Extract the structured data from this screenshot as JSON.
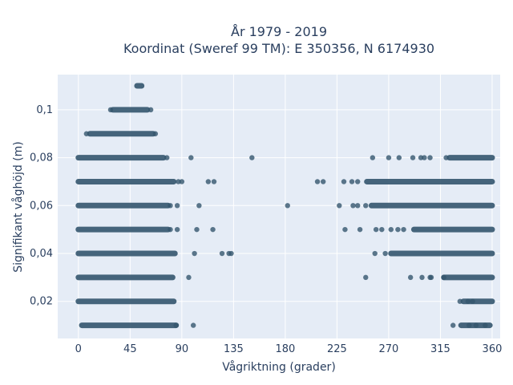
{
  "chart_data": {
    "type": "scatter",
    "title": "År 1979 - 2019",
    "subtitle": "Koordinat (Sweref 99 TM): E 350356, N 6174930",
    "xlabel": "Vågriktning (grader)",
    "ylabel": "Signifikant våghöjd (m)",
    "xlim": [
      -18,
      367
    ],
    "ylim": [
      0.0045,
      0.1147
    ],
    "xticks": [
      0,
      45,
      90,
      135,
      180,
      225,
      270,
      315,
      360
    ],
    "xtick_labels": [
      "0",
      "45",
      "90",
      "135",
      "180",
      "225",
      "270",
      "315",
      "360"
    ],
    "yticks": [
      0.02,
      0.04,
      0.06,
      0.08,
      0.1
    ],
    "ytick_labels": [
      "0,02",
      "0,04",
      "0,06",
      "0,08",
      "0,1"
    ],
    "grid": true,
    "marker_color": "#34566e",
    "plot_bg": "#e5ecf6",
    "segments": [
      {
        "y": 0.01,
        "x_from": 3,
        "x_to": 85
      },
      {
        "y": 0.01,
        "x_from": 333,
        "x_to": 358
      },
      {
        "y": 0.02,
        "x_from": 0,
        "x_to": 83
      },
      {
        "y": 0.02,
        "x_from": 335,
        "x_to": 360
      },
      {
        "y": 0.03,
        "x_from": 0,
        "x_to": 82
      },
      {
        "y": 0.03,
        "x_from": 318,
        "x_to": 360
      },
      {
        "y": 0.04,
        "x_from": 0,
        "x_to": 84
      },
      {
        "y": 0.04,
        "x_from": 272,
        "x_to": 360
      },
      {
        "y": 0.05,
        "x_from": 0,
        "x_to": 78
      },
      {
        "y": 0.05,
        "x_from": 292,
        "x_to": 360
      },
      {
        "y": 0.06,
        "x_from": 0,
        "x_to": 78
      },
      {
        "y": 0.06,
        "x_from": 255,
        "x_to": 360
      },
      {
        "y": 0.07,
        "x_from": 0,
        "x_to": 83
      },
      {
        "y": 0.07,
        "x_from": 251,
        "x_to": 360
      },
      {
        "y": 0.08,
        "x_from": 0,
        "x_to": 74
      },
      {
        "y": 0.08,
        "x_from": 323,
        "x_to": 360
      },
      {
        "y": 0.09,
        "x_from": 10,
        "x_to": 65
      },
      {
        "y": 0.1,
        "x_from": 30,
        "x_to": 60
      },
      {
        "y": 0.11,
        "x_from": 51,
        "x_to": 55
      }
    ],
    "points": [
      {
        "x": 85,
        "y": 0.01
      },
      {
        "x": 100,
        "y": 0.01
      },
      {
        "x": 326,
        "y": 0.01
      },
      {
        "x": 340,
        "y": 0.01
      },
      {
        "x": 346,
        "y": 0.01
      },
      {
        "x": 354,
        "y": 0.01
      },
      {
        "x": 332,
        "y": 0.02
      },
      {
        "x": 339,
        "y": 0.02
      },
      {
        "x": 343,
        "y": 0.02
      },
      {
        "x": 96,
        "y": 0.03
      },
      {
        "x": 250,
        "y": 0.03
      },
      {
        "x": 289,
        "y": 0.03
      },
      {
        "x": 299,
        "y": 0.03
      },
      {
        "x": 306,
        "y": 0.03
      },
      {
        "x": 307,
        "y": 0.03
      },
      {
        "x": 318,
        "y": 0.03
      },
      {
        "x": 101,
        "y": 0.04
      },
      {
        "x": 125,
        "y": 0.04
      },
      {
        "x": 131,
        "y": 0.04
      },
      {
        "x": 133,
        "y": 0.04
      },
      {
        "x": 258,
        "y": 0.04
      },
      {
        "x": 267,
        "y": 0.04
      },
      {
        "x": 80,
        "y": 0.05
      },
      {
        "x": 86,
        "y": 0.05
      },
      {
        "x": 103,
        "y": 0.05
      },
      {
        "x": 117,
        "y": 0.05
      },
      {
        "x": 232,
        "y": 0.05
      },
      {
        "x": 245,
        "y": 0.05
      },
      {
        "x": 259,
        "y": 0.05
      },
      {
        "x": 264,
        "y": 0.05
      },
      {
        "x": 272,
        "y": 0.05
      },
      {
        "x": 278,
        "y": 0.05
      },
      {
        "x": 283,
        "y": 0.05
      },
      {
        "x": 80,
        "y": 0.06
      },
      {
        "x": 86,
        "y": 0.06
      },
      {
        "x": 105,
        "y": 0.06
      },
      {
        "x": 182,
        "y": 0.06
      },
      {
        "x": 227,
        "y": 0.06
      },
      {
        "x": 239,
        "y": 0.06
      },
      {
        "x": 243,
        "y": 0.06
      },
      {
        "x": 250,
        "y": 0.06
      },
      {
        "x": 87,
        "y": 0.07
      },
      {
        "x": 90,
        "y": 0.07
      },
      {
        "x": 113,
        "y": 0.07
      },
      {
        "x": 118,
        "y": 0.07
      },
      {
        "x": 208,
        "y": 0.07
      },
      {
        "x": 213,
        "y": 0.07
      },
      {
        "x": 231,
        "y": 0.07
      },
      {
        "x": 238,
        "y": 0.07
      },
      {
        "x": 243,
        "y": 0.07
      },
      {
        "x": 77,
        "y": 0.08
      },
      {
        "x": 98,
        "y": 0.08
      },
      {
        "x": 151,
        "y": 0.08
      },
      {
        "x": 256,
        "y": 0.08
      },
      {
        "x": 270,
        "y": 0.08
      },
      {
        "x": 279,
        "y": 0.08
      },
      {
        "x": 291,
        "y": 0.08
      },
      {
        "x": 298,
        "y": 0.08
      },
      {
        "x": 301,
        "y": 0.08
      },
      {
        "x": 306,
        "y": 0.08
      },
      {
        "x": 320,
        "y": 0.08
      },
      {
        "x": 7,
        "y": 0.09
      },
      {
        "x": 67,
        "y": 0.09
      },
      {
        "x": 28,
        "y": 0.1
      },
      {
        "x": 63,
        "y": 0.1
      }
    ]
  }
}
